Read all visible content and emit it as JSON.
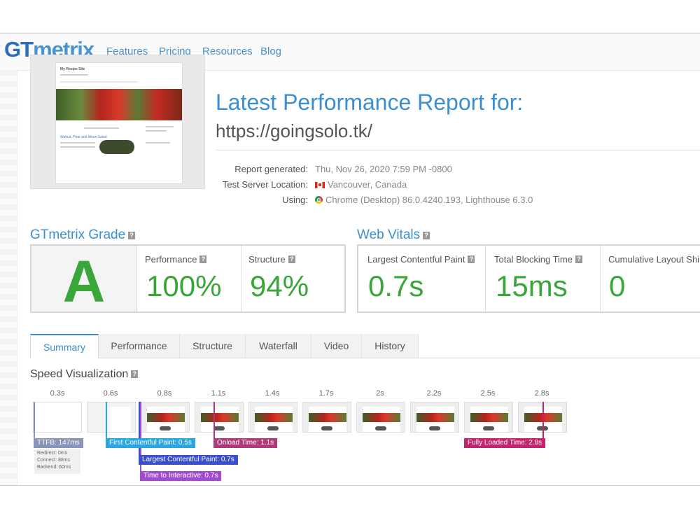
{
  "brand": {
    "logo_gt": "GT",
    "logo_metrix": "metrix"
  },
  "nav": [
    "Features",
    "Pricing",
    "Resources",
    "Blog"
  ],
  "thumbnail": {
    "site_title": "My Recipe Site",
    "post_title": "Walnut, Pear and Moon Salad"
  },
  "report": {
    "title": "Latest Performance Report for:",
    "url": "https://goingsolo.tk/",
    "meta": [
      {
        "label": "Report generated:",
        "value": "Thu, Nov 26, 2020 7:59 PM -0800",
        "icon": ""
      },
      {
        "label": "Test Server Location:",
        "value": "Vancouver, Canada",
        "icon": "canada-flag-icon"
      },
      {
        "label": "Using:",
        "value": "Chrome (Desktop) 86.0.4240.193, Lighthouse 6.3.0",
        "icon": "chrome-icon"
      }
    ]
  },
  "grade": {
    "title": "GTmetrix Grade",
    "help": "?",
    "letter": "A",
    "performance_label": "Performance",
    "performance_value": "100%",
    "structure_label": "Structure",
    "structure_value": "94%"
  },
  "vitals": {
    "title": "Web Vitals",
    "help": "?",
    "lcp_label": "Largest Contentful Paint",
    "lcp_value": "0.7s",
    "tbt_label": "Total Blocking Time",
    "tbt_value": "15ms",
    "cls_label": "Cumulative Layout Shi",
    "cls_value": "0"
  },
  "tabs": [
    "Summary",
    "Performance",
    "Structure",
    "Waterfall",
    "Video",
    "History"
  ],
  "speed": {
    "title": "Speed Visualization",
    "help": "?",
    "times": [
      "0.3s",
      "0.6s",
      "0.8s",
      "1.1s",
      "1.4s",
      "1.7s",
      "2s",
      "2.2s",
      "2.5s",
      "2.8s"
    ],
    "markers": {
      "ttfb": "TTFB: 147ms",
      "fcp": "First Contentful Paint: 0.5s",
      "onload": "Onload Time: 1.1s",
      "fully": "Fully Loaded Time: 2.8s",
      "lcp": "Largest Contentful Paint: 0.7s",
      "tti": "Time to Interactive: 0.7s"
    },
    "ttfb_detail": [
      "Redirect: 0ms",
      "Connect: 88ms",
      "Backend: 60ms"
    ]
  },
  "colors": {
    "ttfb": "#8a93b8",
    "fcp": "#2aa7e0",
    "lcp": "#3a4fd0",
    "tti": "#a34bd0",
    "onload": "#b03a78",
    "fully": "#c4246a",
    "grade": "#3aa63a",
    "accent": "#3b8fd1"
  }
}
